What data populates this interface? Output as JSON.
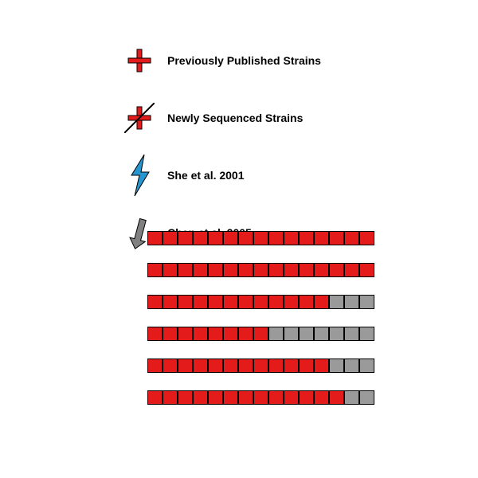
{
  "legend": {
    "items": [
      {
        "label": "Previously Published Strains",
        "icon": "plus-red"
      },
      {
        "label": "Newly Sequenced Strains",
        "icon": "plus-red-marked"
      },
      {
        "label": "She et al. 2001",
        "icon": "bolt-blue"
      },
      {
        "label": "Chen et al. 2005",
        "icon": "arrow-gray"
      }
    ],
    "colors": {
      "red": "#e31b1b",
      "blue": "#2596d0",
      "gray": "#808080",
      "label_text": "#000000"
    },
    "label_fontsize": 14
  },
  "bars": {
    "type": "stacked-bar",
    "row_count": 6,
    "segments_per_row": 15,
    "rows": [
      {
        "red_segments": 15,
        "gray_segments": 0
      },
      {
        "red_segments": 15,
        "gray_segments": 0
      },
      {
        "red_segments": 12,
        "gray_segments": 3
      },
      {
        "red_segments": 8,
        "gray_segments": 7
      },
      {
        "red_segments": 12,
        "gray_segments": 3
      },
      {
        "red_segments": 13,
        "gray_segments": 2
      }
    ],
    "colors": {
      "red": "#e31b1b",
      "gray": "#9a9a9a",
      "border": "#000000",
      "background": "#ffffff"
    },
    "segment_width": 19,
    "segment_height": 18,
    "row_gap": 22,
    "total_width": 285
  }
}
